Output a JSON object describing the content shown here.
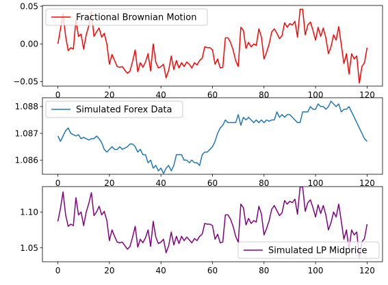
{
  "chart_data": [
    {
      "type": "line",
      "legend_position": "upper-left",
      "xlim": [
        -6,
        126
      ],
      "ylim": [
        -0.056,
        0.051
      ],
      "xticks": [
        0,
        20,
        40,
        60,
        80,
        100,
        120
      ],
      "yticks": [
        0.05,
        0.0,
        -0.05
      ],
      "ytick_labels": [
        "0.05",
        "0.00",
        "−0.05"
      ],
      "series": [
        {
          "name": "Fractional Brownian Motion",
          "color": "#ff0000",
          "x": [
            0,
            1,
            2,
            3,
            4,
            5,
            6,
            7,
            8,
            9,
            10,
            11,
            12,
            13,
            14,
            15,
            16,
            17,
            18,
            19,
            20,
            21,
            22,
            23,
            24,
            25,
            26,
            27,
            28,
            29,
            30,
            31,
            32,
            33,
            34,
            35,
            36,
            37,
            38,
            39,
            40,
            41,
            42,
            43,
            44,
            45,
            46,
            47,
            48,
            49,
            50,
            51,
            52,
            53,
            54,
            55,
            56,
            57,
            58,
            59,
            60,
            61,
            62,
            63,
            64,
            65,
            66,
            67,
            68,
            69,
            70,
            71,
            72,
            73,
            74,
            75,
            76,
            77,
            78,
            79,
            80,
            81,
            82,
            83,
            84,
            85,
            86,
            87,
            88,
            89,
            90,
            91,
            92,
            93,
            94,
            95,
            96,
            97,
            98,
            99,
            100,
            101,
            102,
            103,
            104,
            105,
            106,
            107,
            108,
            109,
            110,
            111,
            112,
            113,
            114,
            115,
            116,
            117,
            118,
            119,
            120
          ],
          "values": [
            0.0,
            0.02,
            0.04,
            0.01,
            -0.009,
            -0.005,
            -0.007,
            0.032,
            0.01,
            0.013,
            -0.007,
            0.012,
            0.024,
            0.043,
            0.01,
            0.016,
            0.021,
            0.009,
            0.014,
            0.0,
            -0.027,
            -0.014,
            -0.022,
            -0.03,
            -0.031,
            -0.03,
            -0.035,
            -0.039,
            -0.036,
            -0.023,
            -0.008,
            -0.037,
            -0.025,
            -0.031,
            -0.024,
            -0.013,
            -0.036,
            0.0,
            -0.024,
            -0.032,
            -0.03,
            -0.027,
            -0.045,
            -0.035,
            -0.016,
            -0.034,
            -0.022,
            -0.032,
            -0.025,
            -0.03,
            -0.024,
            -0.027,
            -0.032,
            -0.025,
            -0.028,
            -0.022,
            -0.019,
            -0.004,
            -0.005,
            -0.005,
            -0.008,
            -0.027,
            -0.02,
            -0.032,
            -0.031,
            0.008,
            0.008,
            0.002,
            -0.008,
            -0.022,
            -0.03,
            0.022,
            0.018,
            -0.006,
            0.002,
            -0.004,
            0.0,
            -0.002,
            0.02,
            0.009,
            -0.02,
            -0.011,
            0.0,
            0.016,
            0.02,
            0.014,
            0.007,
            0.011,
            0.028,
            0.022,
            0.027,
            0.025,
            0.03,
            0.009,
            0.046,
            0.046,
            0.012,
            0.025,
            0.029,
            0.018,
            0.005,
            0.022,
            0.01,
            0.021,
            0.008,
            -0.013,
            -0.004,
            0.012,
            0.005,
            0.023,
            -0.001,
            -0.026,
            -0.013,
            -0.04,
            -0.013,
            -0.02,
            -0.016,
            -0.052,
            -0.03,
            -0.025,
            -0.005
          ]
        }
      ]
    },
    {
      "type": "line",
      "legend_position": "upper-left",
      "xlim": [
        -6,
        126
      ],
      "ylim": [
        1.08547,
        1.08833
      ],
      "xticks": [
        0,
        20,
        40,
        60,
        80,
        100,
        120
      ],
      "yticks": [
        1.086,
        1.087,
        1.088
      ],
      "ytick_labels": [
        "1.086",
        "1.087",
        "1.088"
      ],
      "series": [
        {
          "name": "Simulated Forex Data",
          "color": "#1f77b4",
          "x": [
            0,
            1,
            2,
            3,
            4,
            5,
            6,
            7,
            8,
            9,
            10,
            11,
            12,
            13,
            14,
            15,
            16,
            17,
            18,
            19,
            20,
            21,
            22,
            23,
            24,
            25,
            26,
            27,
            28,
            29,
            30,
            31,
            32,
            33,
            34,
            35,
            36,
            37,
            38,
            39,
            40,
            41,
            42,
            43,
            44,
            45,
            46,
            47,
            48,
            49,
            50,
            51,
            52,
            53,
            54,
            55,
            56,
            57,
            58,
            59,
            60,
            61,
            62,
            63,
            64,
            65,
            66,
            67,
            68,
            69,
            70,
            71,
            72,
            73,
            74,
            75,
            76,
            77,
            78,
            79,
            80,
            81,
            82,
            83,
            84,
            85,
            86,
            87,
            88,
            89,
            90,
            91,
            92,
            93,
            94,
            95,
            96,
            97,
            98,
            99,
            100,
            101,
            102,
            103,
            104,
            105,
            106,
            107,
            108,
            109,
            110,
            111,
            112,
            113,
            114,
            115,
            116,
            117,
            118,
            119,
            120
          ],
          "values": [
            1.0869,
            1.0867,
            1.0869,
            1.0871,
            1.0872,
            1.087,
            1.08695,
            1.0869,
            1.08695,
            1.0868,
            1.08685,
            1.0868,
            1.08675,
            1.0868,
            1.0868,
            1.0869,
            1.0868,
            1.08665,
            1.0864,
            1.0863,
            1.0864,
            1.0865,
            1.0864,
            1.0864,
            1.0865,
            1.0864,
            1.08645,
            1.0865,
            1.0866,
            1.0866,
            1.0865,
            1.0863,
            1.0864,
            1.0862,
            1.0862,
            1.0859,
            1.086,
            1.0857,
            1.0858,
            1.0856,
            1.0857,
            1.0855,
            1.0857,
            1.0858,
            1.0856,
            1.0858,
            1.0862,
            1.0862,
            1.0862,
            1.086,
            1.086,
            1.0859,
            1.086,
            1.0859,
            1.0859,
            1.0858,
            1.0862,
            1.0863,
            1.0863,
            1.0864,
            1.0865,
            1.0867,
            1.087,
            1.0872,
            1.0873,
            1.0875,
            1.0874,
            1.0874,
            1.0874,
            1.0874,
            1.0877,
            1.0873,
            1.0876,
            1.0875,
            1.0876,
            1.0875,
            1.0874,
            1.0875,
            1.0874,
            1.0875,
            1.0874,
            1.0875,
            1.08745,
            1.0875,
            1.0875,
            1.0878,
            1.0876,
            1.0877,
            1.0876,
            1.0877,
            1.0877,
            1.0876,
            1.0875,
            1.0874,
            1.0874,
            1.0878,
            1.0878,
            1.0878,
            1.088,
            1.0879,
            1.0879,
            1.0881,
            1.088,
            1.088,
            1.0879,
            1.088,
            1.0882,
            1.0881,
            1.088,
            1.0881,
            1.0878,
            1.0879,
            1.0879,
            1.088,
            1.0878,
            1.0876,
            1.0874,
            1.0872,
            1.087,
            1.0868,
            1.0867
          ]
        }
      ]
    },
    {
      "type": "line",
      "legend_position": "lower-right",
      "xlim": [
        -6,
        126
      ],
      "ylim": [
        1.0305,
        1.1355
      ],
      "xticks": [
        0,
        20,
        40,
        60,
        80,
        100,
        120
      ],
      "yticks": [
        1.05,
        1.1
      ],
      "ytick_labels": [
        "1.05",
        "1.10"
      ],
      "series": [
        {
          "name": "Simulated LP Midprice",
          "color": "#800080",
          "x": [
            0,
            1,
            2,
            3,
            4,
            5,
            6,
            7,
            8,
            9,
            10,
            11,
            12,
            13,
            14,
            15,
            16,
            17,
            18,
            19,
            20,
            21,
            22,
            23,
            24,
            25,
            26,
            27,
            28,
            29,
            30,
            31,
            32,
            33,
            34,
            35,
            36,
            37,
            38,
            39,
            40,
            41,
            42,
            43,
            44,
            45,
            46,
            47,
            48,
            49,
            50,
            51,
            52,
            53,
            54,
            55,
            56,
            57,
            58,
            59,
            60,
            61,
            62,
            63,
            64,
            65,
            66,
            67,
            68,
            69,
            70,
            71,
            72,
            73,
            74,
            75,
            76,
            77,
            78,
            79,
            80,
            81,
            82,
            83,
            84,
            85,
            86,
            87,
            88,
            89,
            90,
            91,
            92,
            93,
            94,
            95,
            96,
            97,
            98,
            99,
            100,
            101,
            102,
            103,
            104,
            105,
            106,
            107,
            108,
            109,
            110,
            111,
            112,
            113,
            114,
            115,
            116,
            117,
            118,
            119,
            120
          ],
          "values": [
            1.087,
            1.105,
            1.128,
            1.096,
            1.08,
            1.083,
            1.081,
            1.12,
            1.096,
            1.1,
            1.081,
            1.1,
            1.112,
            1.127,
            1.095,
            1.1,
            1.108,
            1.096,
            1.101,
            1.088,
            1.06,
            1.075,
            1.066,
            1.058,
            1.057,
            1.058,
            1.053,
            1.048,
            1.052,
            1.065,
            1.08,
            1.051,
            1.062,
            1.057,
            1.064,
            1.075,
            1.052,
            1.087,
            1.065,
            1.056,
            1.058,
            1.062,
            1.043,
            1.053,
            1.072,
            1.054,
            1.066,
            1.056,
            1.066,
            1.06,
            1.065,
            1.061,
            1.057,
            1.063,
            1.06,
            1.066,
            1.069,
            1.084,
            1.083,
            1.083,
            1.081,
            1.062,
            1.069,
            1.057,
            1.058,
            1.096,
            1.096,
            1.09,
            1.08,
            1.066,
            1.058,
            1.111,
            1.106,
            1.082,
            1.091,
            1.084,
            1.088,
            1.086,
            1.108,
            1.097,
            1.068,
            1.077,
            1.088,
            1.104,
            1.109,
            1.102,
            1.095,
            1.099,
            1.116,
            1.111,
            1.115,
            1.113,
            1.118,
            1.097,
            1.135,
            1.135,
            1.101,
            1.113,
            1.117,
            1.106,
            1.093,
            1.11,
            1.098,
            1.109,
            1.096,
            1.075,
            1.085,
            1.1,
            1.093,
            1.111,
            1.087,
            1.062,
            1.075,
            1.048,
            1.075,
            1.068,
            1.072,
            1.036,
            1.058,
            1.063,
            1.083
          ]
        }
      ]
    }
  ]
}
